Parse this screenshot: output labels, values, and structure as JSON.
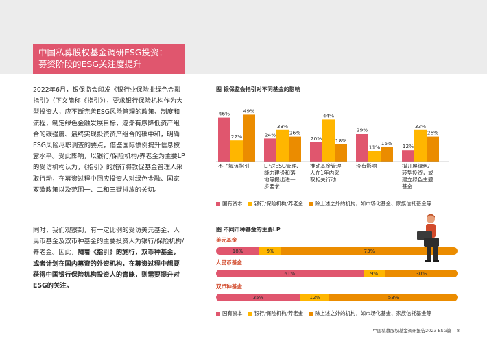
{
  "title": {
    "line1": "中国私募股权基金调研ESG投资：",
    "line2": "募资阶段的ESG关注度提升"
  },
  "paragraph1": "2022年6月，银保监会印发《银行业保险业绿色金融指引》（下文简称《指引》），要求银行保险机构作为大型投资人，应不断完善ESG风险管理的政策、制度和流程，制定绿色金融发展目标，遂渐有序降低资产组合的碳强度、最终实现投资资产组合的碳中和，明确ESG风险尽职调查的要点，借鉴国际惯例提升信息披露水平。受此影响，以银行/保险机构/养老金为主要LP的受访机构认为，《指引》的施行将敦促基金管理人采取行动，在募资过程中回应投资人对绿色金融、国家双碳政策以及范围一、二和三碳排放的关切。",
  "paragraph2": {
    "normal": "同时，我们观察到，有一定比例的受访美元基金、人民币基金及双币种基金的主要投资人为银行/保险机构/养老金。因此，",
    "bold": "随着《指引》的施行，双币种基金，或者计划在国内募资的外资机构，在募资过程中想要获得中国银行保险机构投资人的青睐，则需要提升对ESG的关注。"
  },
  "chart_data": [
    {
      "type": "bar",
      "title": "图 银保监会指引对不同基金的影响",
      "categories": [
        "不了解该指引",
        "LP对ESG管理、能力建设和落地等提出进一步要求",
        "推动基金管理人在1年内采取相关行动",
        "没有影响",
        "拟开展绿色/转型投资，或建立绿色主题基金"
      ],
      "category_lines": [
        [
          "不了解该指引"
        ],
        [
          "LP对ESG管理、",
          "能力建设和落",
          "地等提出进一",
          "步要求"
        ],
        [
          "推动基金管理",
          "人在1年内采",
          "取相关行动"
        ],
        [
          "没有影响"
        ],
        [
          "拟开展绿色/",
          "转型投资，或",
          "建立绿色主题",
          "基金"
        ]
      ],
      "series": [
        {
          "name": "国有资本",
          "color": "#e0566e",
          "values": [
            46,
            24,
            20,
            29,
            12
          ]
        },
        {
          "name": "银行/保险机构/养老金",
          "color": "#ffb600",
          "values": [
            22,
            33,
            44,
            11,
            33
          ]
        },
        {
          "name": "除上述之外的机构，如市场化基金、家族信托基金等",
          "color": "#eb8c00",
          "values": [
            49,
            26,
            18,
            15,
            26
          ]
        }
      ],
      "ylim": [
        0,
        60
      ]
    },
    {
      "type": "bar",
      "title": "图 不同币种基金的主要LP",
      "categories": [
        "美元基金",
        "人民币基金",
        "双币种基金"
      ],
      "series": [
        {
          "name": "国有资本",
          "color": "#e0566e",
          "values": [
            18,
            61,
            35
          ]
        },
        {
          "name": "银行/保险机构/养老金",
          "color": "#ffb600",
          "values": [
            9,
            9,
            12
          ]
        },
        {
          "name": "除上述之外的机构，如市场化基金、家族信托基金等",
          "color": "#eb8c00",
          "values": [
            73,
            30,
            53
          ]
        }
      ],
      "stacked": true,
      "orientation": "horizontal"
    }
  ],
  "footer": {
    "text": "中国私募股权基金调研报告2023 ESG篇",
    "page": "8"
  }
}
